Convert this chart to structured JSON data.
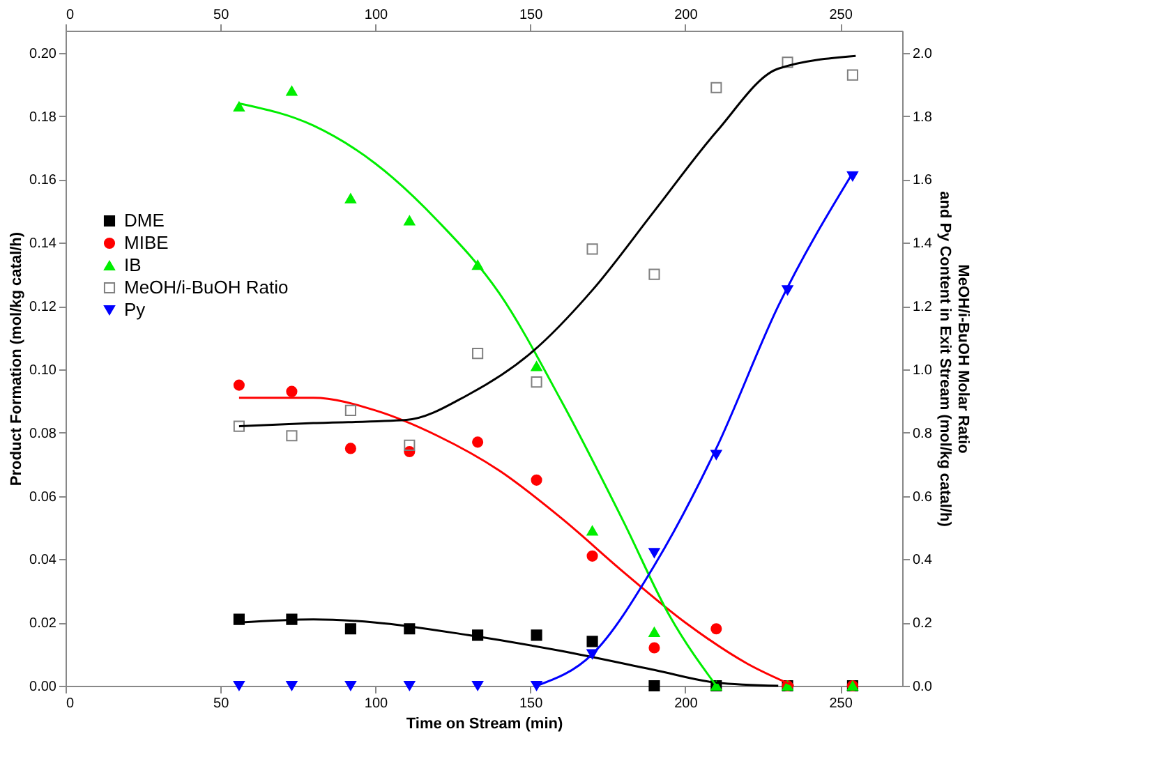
{
  "chart_data": {
    "type": "scatter",
    "xlabel": "Time on Stream (min)",
    "ylabel": "Product Formation (mol/kg catal/h)",
    "y2label": "MeOH/i-BuOH Molar Ratio\nand Py Content in Exit Stream (mol/kg catal/h)",
    "xlim": [
      0,
      270
    ],
    "xticks": [
      0,
      50,
      100,
      150,
      200,
      250
    ],
    "x2lim": [
      0,
      270
    ],
    "x2ticks": [
      0,
      50,
      100,
      150,
      200,
      250
    ],
    "ylim": [
      0,
      0.207
    ],
    "yticks": [
      {
        "value": 0,
        "label": "0.00"
      },
      {
        "value": 0.02,
        "label": "0.02"
      },
      {
        "value": 0.04,
        "label": "0.04"
      },
      {
        "value": 0.06,
        "label": "0.06"
      },
      {
        "value": 0.08,
        "label": "0.08"
      },
      {
        "value": 0.1,
        "label": "0.10"
      },
      {
        "value": 0.12,
        "label": "0.12"
      },
      {
        "value": 0.14,
        "label": "0.14"
      },
      {
        "value": 0.16,
        "label": "0.16"
      },
      {
        "value": 0.18,
        "label": "0.18"
      },
      {
        "value": 0.2,
        "label": "0.20"
      }
    ],
    "y2lim": [
      0,
      2.07
    ],
    "y2ticks": [
      {
        "value": 0,
        "label": "0.0"
      },
      {
        "value": 0.2,
        "label": "0.2"
      },
      {
        "value": 0.4,
        "label": "0.4"
      },
      {
        "value": 0.6,
        "label": "0.6"
      },
      {
        "value": 0.8,
        "label": "0.8"
      },
      {
        "value": 1,
        "label": "1.0"
      },
      {
        "value": 1.2,
        "label": "1.2"
      },
      {
        "value": 1.4,
        "label": "1.4"
      },
      {
        "value": 1.6,
        "label": "1.6"
      },
      {
        "value": 1.8,
        "label": "1.8"
      },
      {
        "value": 2,
        "label": "2.0"
      }
    ],
    "grid": false,
    "legend": "left",
    "series": [
      {
        "name": "DME",
        "color": "#000000",
        "marker": "square",
        "x": [
          56,
          73,
          92,
          111,
          133,
          152,
          170,
          190,
          210,
          233,
          254
        ],
        "values": [
          0.021,
          0.021,
          0.018,
          0.018,
          0.016,
          0.016,
          0.014,
          0.0,
          0.0,
          0.0,
          0.0
        ]
      },
      {
        "name": "MIBE",
        "color": "#ff0000",
        "marker": "circle",
        "x": [
          56,
          73,
          92,
          111,
          133,
          152,
          170,
          190,
          210,
          233,
          254
        ],
        "values": [
          0.095,
          0.093,
          0.075,
          0.074,
          0.077,
          0.065,
          0.041,
          0.012,
          0.018,
          0.0,
          0.0
        ]
      },
      {
        "name": "IB",
        "color": "#00ee00",
        "marker": "triangle",
        "x": [
          56,
          73,
          92,
          111,
          133,
          152,
          170,
          190,
          210,
          233,
          254
        ],
        "values": [
          0.183,
          0.188,
          0.154,
          0.147,
          0.133,
          0.101,
          0.049,
          0.017,
          0.0,
          0.0,
          0.0
        ]
      },
      {
        "name": "MeOH/i-BuOH Ratio",
        "color": "#808080",
        "marker": "square-open",
        "axis": "y2",
        "x": [
          56,
          73,
          92,
          111,
          133,
          152,
          170,
          190,
          210,
          233,
          254
        ],
        "values": [
          0.82,
          0.79,
          0.87,
          0.76,
          1.05,
          0.96,
          1.38,
          1.3,
          1.89,
          1.97,
          1.93
        ]
      },
      {
        "name": "Py",
        "color": "#0000ff",
        "marker": "triangle-down",
        "axis": "y2",
        "x": [
          56,
          73,
          92,
          111,
          133,
          152,
          170,
          190,
          210,
          233,
          254
        ],
        "values": [
          0,
          0,
          0,
          0,
          0,
          0,
          0.1,
          0.42,
          0.73,
          1.25,
          1.61
        ]
      },
      {
        "type": "line",
        "color": "#000000",
        "x": [
          56,
          80,
          100,
          130,
          160,
          190,
          210,
          230
        ],
        "values": [
          0.02,
          0.021,
          0.02,
          0.016,
          0.011,
          0.005,
          0.001,
          0.0
        ]
      },
      {
        "type": "line",
        "color": "#ff0000",
        "x": [
          56,
          80,
          100,
          120,
          140,
          160,
          180,
          200,
          220,
          235
        ],
        "values": [
          0.091,
          0.091,
          0.087,
          0.079,
          0.068,
          0.053,
          0.036,
          0.02,
          0.007,
          0.0
        ]
      },
      {
        "type": "line",
        "color": "#00ee00",
        "x": [
          56,
          80,
          100,
          120,
          140,
          160,
          180,
          195,
          210
        ],
        "values": [
          0.184,
          0.177,
          0.165,
          0.147,
          0.124,
          0.09,
          0.052,
          0.022,
          0.0
        ]
      },
      {
        "type": "line",
        "color": "#000000",
        "axis": "y2",
        "x": [
          56,
          80,
          110,
          130,
          150,
          170,
          190,
          210,
          230,
          255
        ],
        "values": [
          0.82,
          0.83,
          0.84,
          0.92,
          1.05,
          1.25,
          1.5,
          1.75,
          1.95,
          1.99
        ]
      },
      {
        "type": "line",
        "color": "#0000ff",
        "axis": "y2",
        "x": [
          152,
          170,
          190,
          210,
          230,
          254
        ],
        "values": [
          0.0,
          0.1,
          0.38,
          0.75,
          1.2,
          1.62
        ]
      }
    ]
  }
}
